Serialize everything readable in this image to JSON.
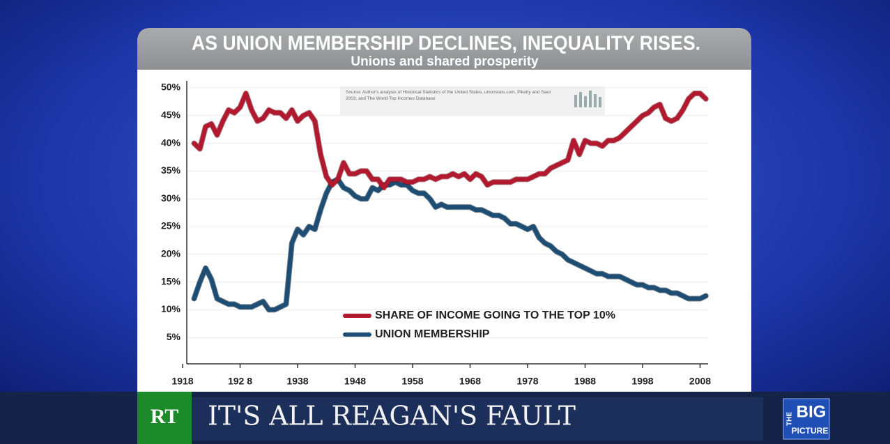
{
  "chart_data": {
    "type": "line",
    "title": "AS UNION MEMBERSHIP DECLINES, INEQUALITY RISES.",
    "subtitle": "Unions and shared prosperity",
    "source": "Source: Author's analysis of Historical Statistics of the United States, unionstats.com, Piketty and Saez 2003, and The World Top Incomes Database",
    "x": [
      1920,
      1921,
      1922,
      1923,
      1924,
      1925,
      1926,
      1927,
      1928,
      1929,
      1930,
      1931,
      1932,
      1933,
      1934,
      1935,
      1936,
      1937,
      1938,
      1939,
      1940,
      1941,
      1942,
      1943,
      1944,
      1945,
      1946,
      1947,
      1948,
      1949,
      1950,
      1951,
      1952,
      1953,
      1954,
      1955,
      1956,
      1957,
      1958,
      1959,
      1960,
      1961,
      1962,
      1963,
      1964,
      1965,
      1966,
      1967,
      1968,
      1969,
      1970,
      1971,
      1972,
      1973,
      1974,
      1975,
      1976,
      1977,
      1978,
      1979,
      1980,
      1981,
      1982,
      1983,
      1984,
      1985,
      1986,
      1987,
      1988,
      1989,
      1990,
      1991,
      1992,
      1993,
      1994,
      1995,
      1996,
      1997,
      1998,
      1999,
      2000,
      2001,
      2002,
      2003,
      2004,
      2005,
      2006,
      2007,
      2008,
      2009
    ],
    "series": [
      {
        "name": "SHARE OF INCOME GOING TO THE TOP 10%",
        "color": "#b3192e",
        "values": [
          40,
          39,
          43,
          43.5,
          41.5,
          44,
          46,
          45.5,
          46.5,
          49,
          46,
          44,
          44.5,
          46,
          45.5,
          45.5,
          44.5,
          46,
          44,
          45,
          45.5,
          44,
          38,
          34,
          32.5,
          33.5,
          36.5,
          34.5,
          34.5,
          35,
          35,
          33.5,
          33.5,
          32,
          33.5,
          33.5,
          33.5,
          33,
          33,
          33.5,
          33.5,
          34,
          33.5,
          34,
          34,
          34.5,
          34,
          34.5,
          33.5,
          34.5,
          34,
          32.5,
          33,
          33,
          33,
          33,
          33.5,
          33.5,
          33.5,
          34,
          34.5,
          34.5,
          35.5,
          36,
          36.5,
          37,
          40.5,
          38,
          40.5,
          40,
          40,
          39.5,
          40.5,
          40.5,
          41,
          42,
          43,
          44,
          45,
          45.5,
          46.5,
          47,
          44.5,
          44,
          44.5,
          46,
          48,
          49,
          49,
          48
        ]
      },
      {
        "name": "UNION MEMBERSHIP",
        "color": "#1d4d73",
        "values": [
          12,
          15,
          17.5,
          15.5,
          12,
          11.5,
          11,
          11,
          10.5,
          10.5,
          10.5,
          11,
          11.5,
          10,
          10,
          10.5,
          11,
          22,
          24.5,
          23.5,
          25,
          24.5,
          28,
          31,
          33,
          33.5,
          32,
          31.5,
          30.5,
          30,
          30,
          32,
          31.5,
          32.5,
          32.5,
          33,
          32.5,
          32.5,
          31.5,
          31,
          31,
          30,
          28.5,
          29,
          28.5,
          28.5,
          28.5,
          28.5,
          28.5,
          28,
          28,
          27.5,
          27,
          27,
          26.5,
          25.5,
          25.5,
          25,
          24.5,
          25,
          23,
          22,
          21.5,
          20.5,
          20,
          19,
          18.5,
          18,
          17.5,
          17,
          16.5,
          16.5,
          16,
          16,
          16,
          15.5,
          15,
          14.5,
          14.5,
          14,
          14,
          13.5,
          13.5,
          13,
          13,
          12.5,
          12,
          12,
          12,
          12.5
        ]
      }
    ],
    "xlim": [
      1918,
      2010
    ],
    "xticks": [
      1918,
      {
        "value": 1928,
        "label": "192 8"
      },
      1938,
      1948,
      1958,
      1968,
      1978,
      1988,
      1998,
      2008
    ],
    "ylim": [
      0,
      50
    ],
    "yticks": [
      {
        "value": 5,
        "label": "5%"
      },
      {
        "value": 10,
        "label": "10%"
      },
      {
        "value": 15,
        "label": "15%"
      },
      {
        "value": 20,
        "label": "20%"
      },
      {
        "value": 25,
        "label": "25%"
      },
      {
        "value": 30,
        "label": "30%"
      },
      {
        "value": 35,
        "label": "35%"
      },
      {
        "value": 40,
        "label": "40%"
      },
      {
        "value": 45,
        "label": "45%"
      },
      {
        "value": 50,
        "label": "50%"
      }
    ],
    "grid": true
  },
  "banner": {
    "channel": "RT",
    "headline": "IT'S ALL REAGAN'S FAULT",
    "show_the": "THE",
    "show_big": "BIG",
    "show_picture": "PICTURE"
  }
}
